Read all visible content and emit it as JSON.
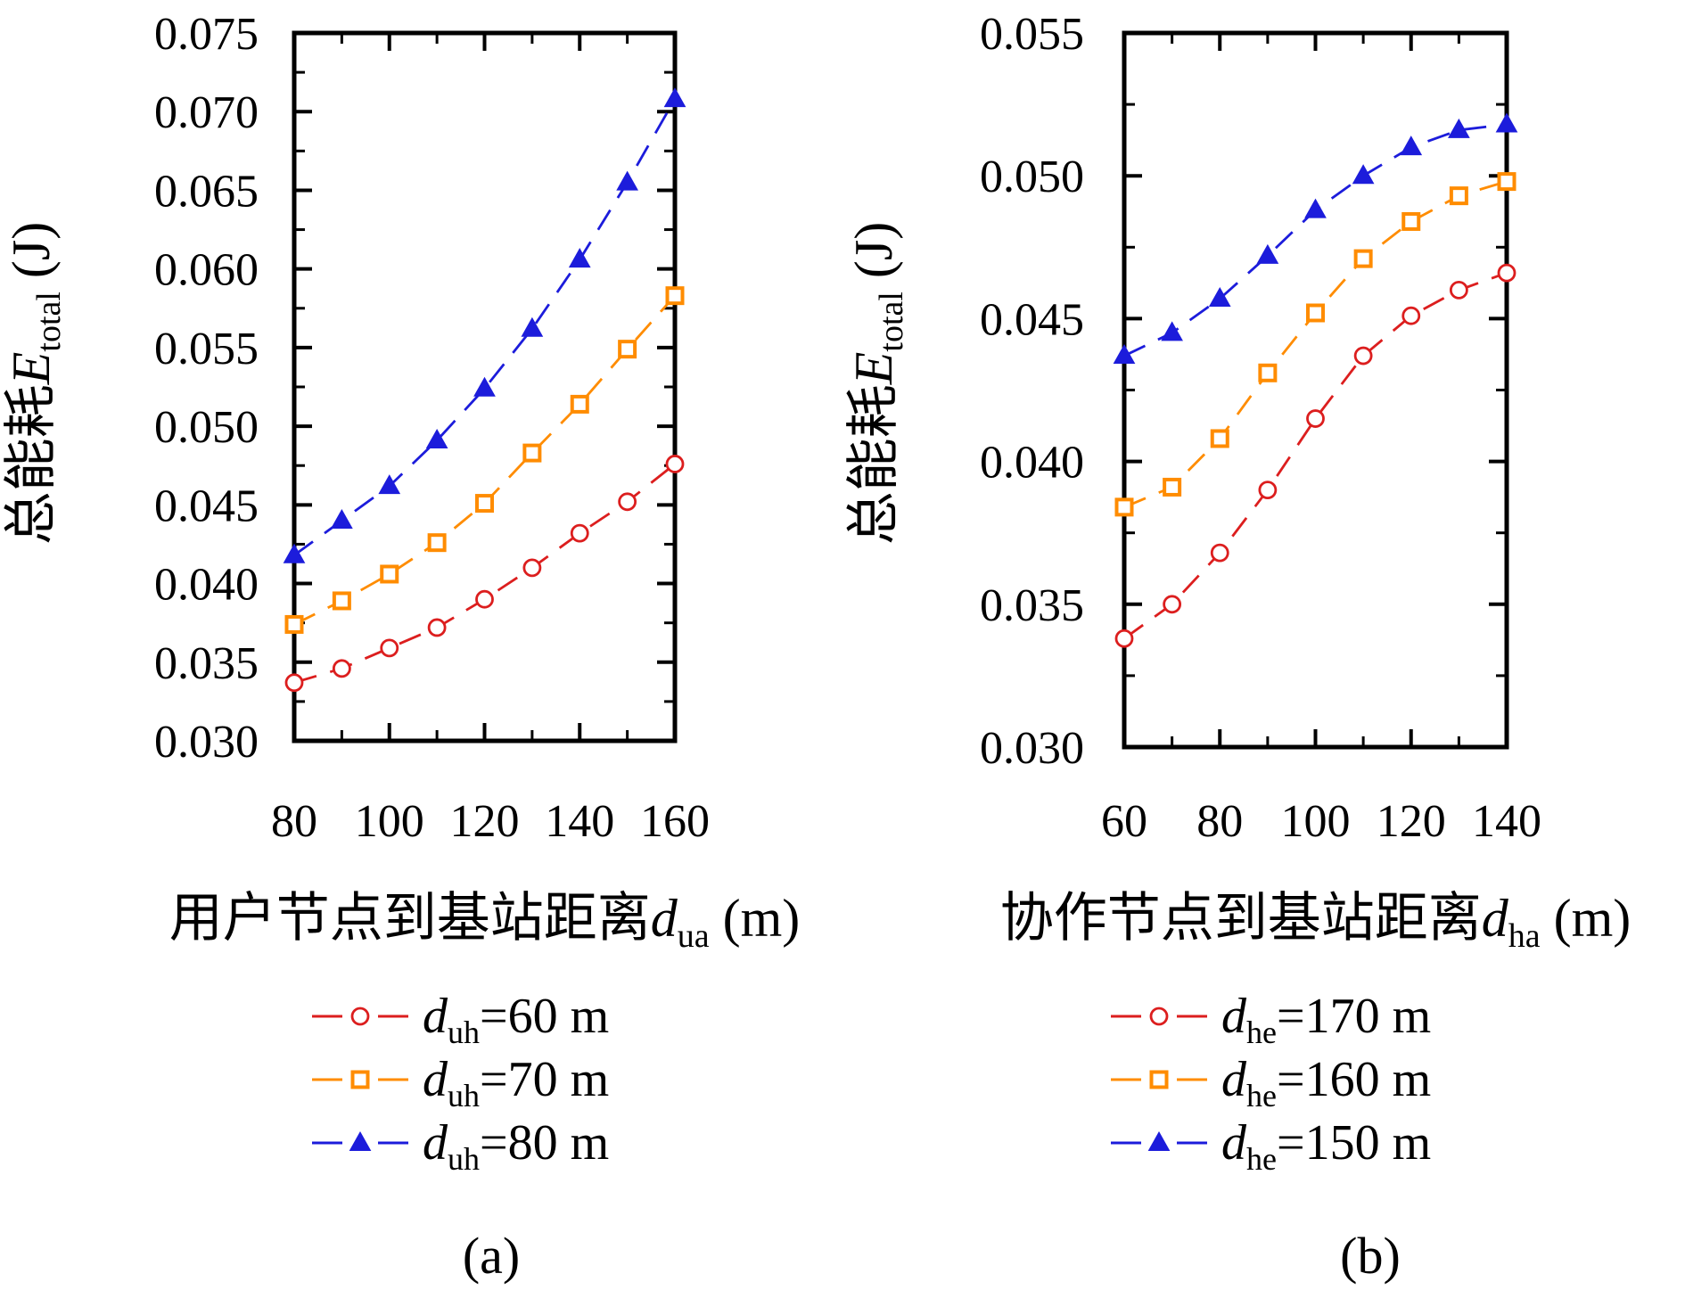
{
  "figure": {
    "background": "#ffffff",
    "text_color": "#000000"
  },
  "chart_data": [
    {
      "type": "line",
      "caption": "(a)",
      "x_axis": {
        "title_prefix": "用户节点到基站距离",
        "title_var": "d",
        "title_sub": "ua",
        "title_suffix": " (m)",
        "range": [
          80,
          160
        ],
        "ticks": [
          80,
          100,
          120,
          140,
          160
        ],
        "minor_ticks": [
          90,
          110,
          130,
          150
        ]
      },
      "y_axis": {
        "title_prefix": "总能耗",
        "title_var": "E",
        "title_sub": "total",
        "title_suffix": " (J)",
        "range": [
          0.03,
          0.075
        ],
        "ticks": [
          0.03,
          0.035,
          0.04,
          0.045,
          0.05,
          0.055,
          0.06,
          0.065,
          0.07,
          0.075
        ],
        "minor_step": 0.0025,
        "decimals": 3
      },
      "x": [
        80,
        90,
        100,
        110,
        120,
        130,
        140,
        150,
        160
      ],
      "series": [
        {
          "label": "d_uh=60 m",
          "legend": {
            "var": "d",
            "sub": "uh",
            "rest": "=60 m"
          },
          "color": "#dc1e1e",
          "marker": "circle",
          "values": [
            0.0337,
            0.0346,
            0.0359,
            0.0372,
            0.039,
            0.041,
            0.0432,
            0.0452,
            0.0476
          ]
        },
        {
          "label": "d_uh=70 m",
          "legend": {
            "var": "d",
            "sub": "uh",
            "rest": "=70 m"
          },
          "color": "#ff8c00",
          "marker": "square",
          "values": [
            0.0374,
            0.0389,
            0.0406,
            0.0426,
            0.0451,
            0.0483,
            0.0514,
            0.0549,
            0.0583
          ]
        },
        {
          "label": "d_uh=80 m",
          "legend": {
            "var": "d",
            "sub": "uh",
            "rest": "=80 m"
          },
          "color": "#1c1cdb",
          "marker": "triangle",
          "values": [
            0.0418,
            0.044,
            0.0462,
            0.0491,
            0.0524,
            0.0562,
            0.0606,
            0.0655,
            0.0708
          ]
        }
      ]
    },
    {
      "type": "line",
      "caption": "(b)",
      "x_axis": {
        "title_prefix": "协作节点到基站距离",
        "title_var": "d",
        "title_sub": "ha",
        "title_suffix": " (m)",
        "range": [
          60,
          140
        ],
        "ticks": [
          60,
          80,
          100,
          120,
          140
        ],
        "minor_ticks": [
          70,
          90,
          110,
          130
        ]
      },
      "y_axis": {
        "title_prefix": "总能耗",
        "title_var": "E",
        "title_sub": "total",
        "title_suffix": " (J)",
        "range": [
          0.03,
          0.055
        ],
        "ticks": [
          0.03,
          0.035,
          0.04,
          0.045,
          0.05,
          0.055
        ],
        "minor_step": 0.0025,
        "decimals": 3
      },
      "x": [
        60,
        70,
        80,
        90,
        100,
        110,
        120,
        130,
        140
      ],
      "series": [
        {
          "label": "d_he=170 m",
          "legend": {
            "var": "d",
            "sub": "he",
            "rest": "=170 m"
          },
          "color": "#dc1e1e",
          "marker": "circle",
          "values": [
            0.0338,
            0.035,
            0.0368,
            0.039,
            0.0415,
            0.0437,
            0.0451,
            0.046,
            0.0466
          ]
        },
        {
          "label": "d_he=160 m",
          "legend": {
            "var": "d",
            "sub": "he",
            "rest": "=160 m"
          },
          "color": "#ff8c00",
          "marker": "square",
          "values": [
            0.0384,
            0.0391,
            0.0408,
            0.0431,
            0.0452,
            0.0471,
            0.0484,
            0.0493,
            0.0498
          ]
        },
        {
          "label": "d_he=150 m",
          "legend": {
            "var": "d",
            "sub": "he",
            "rest": "=150 m"
          },
          "color": "#1c1cdb",
          "marker": "triangle",
          "values": [
            0.0437,
            0.0445,
            0.0457,
            0.0472,
            0.0488,
            0.05,
            0.051,
            0.0516,
            0.0518
          ]
        }
      ]
    }
  ]
}
